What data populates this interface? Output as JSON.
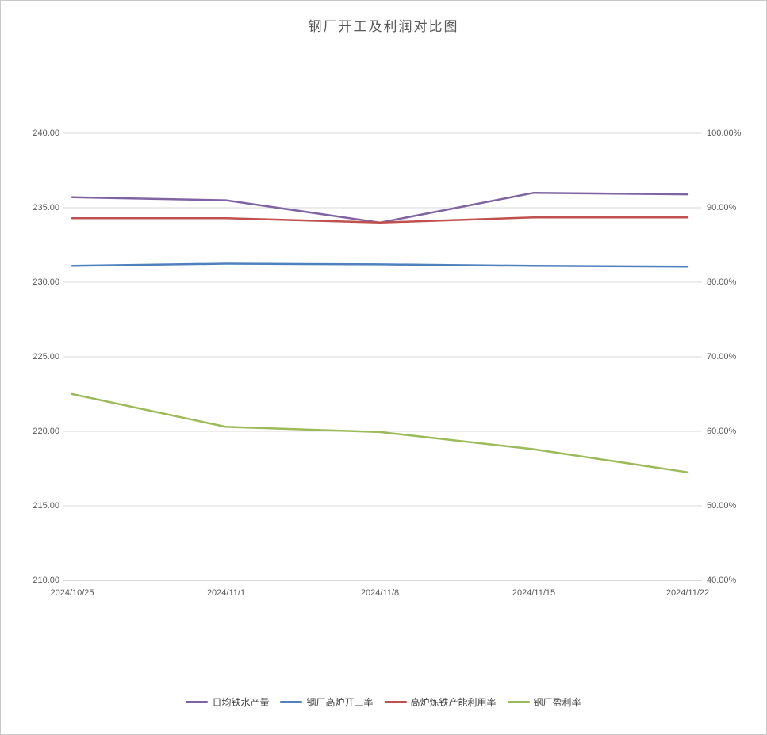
{
  "chart_data": {
    "type": "line",
    "title": "钢厂开工及利润对比图",
    "x": [
      "2024/10/25",
      "2024/11/1",
      "2024/11/8",
      "2024/11/15",
      "2024/11/22"
    ],
    "left_axis": {
      "min": 210,
      "max": 240,
      "ticks": [
        "240.00",
        "235.00",
        "230.00",
        "225.00",
        "220.00",
        "215.00",
        "210.00"
      ]
    },
    "right_axis": {
      "min": 40,
      "max": 100,
      "ticks": [
        "100.00%",
        "90.00%",
        "80.00%",
        "70.00%",
        "60.00%",
        "50.00%",
        "40.00%"
      ]
    },
    "grid": true,
    "legend_position": "bottom",
    "series": [
      {
        "name": "日均铁水产量",
        "axis": "left",
        "color": "#8064A2",
        "values": [
          235.7,
          235.5,
          234.0,
          236.0,
          235.9
        ]
      },
      {
        "name": "钢厂高炉开工率",
        "axis": "right",
        "color": "#4F81BD",
        "values": [
          82.2,
          82.5,
          82.4,
          82.2,
          82.1
        ]
      },
      {
        "name": "高炉炼铁产能利用率",
        "axis": "right",
        "color": "#C0504D",
        "values": [
          88.6,
          88.6,
          88.0,
          88.7,
          88.7
        ]
      },
      {
        "name": "钢厂盈利率",
        "axis": "right",
        "color": "#9BBB59",
        "values": [
          65.0,
          60.6,
          59.9,
          57.6,
          54.5
        ]
      }
    ]
  }
}
